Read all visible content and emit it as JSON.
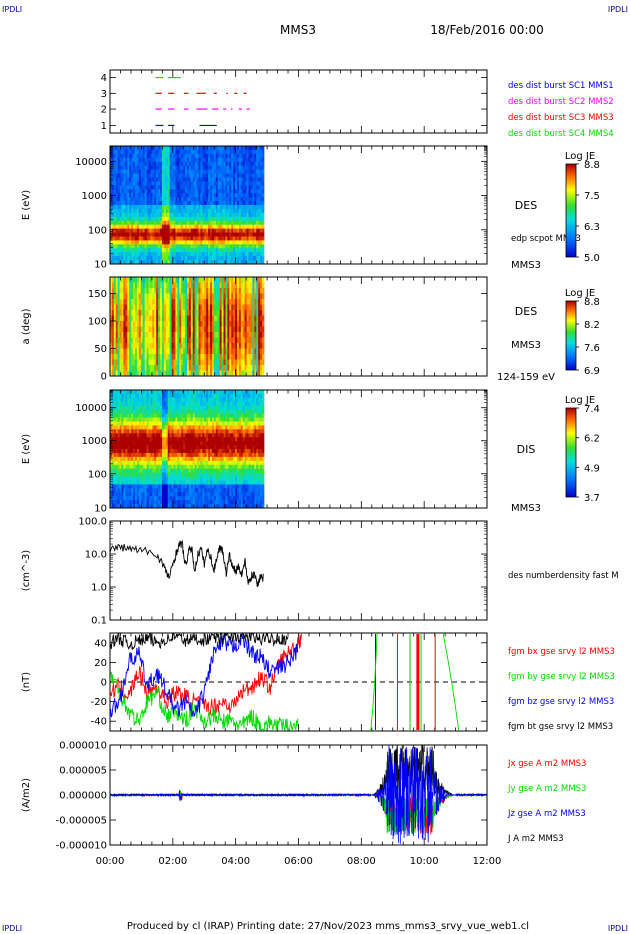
{
  "header": {
    "left_tag": "IPDLI",
    "right_tag": "IPDLI",
    "spacecraft": "MMS3",
    "date": "18/Feb/2016 00:00"
  },
  "footer": {
    "left_tag": "IPDLI",
    "right_tag": "IPDLI",
    "text": "Produced by cl (IRAP)   Printing date: 27/Nov/2023   mms_mms3_srvy_vue_web1.cl"
  },
  "x_axis": {
    "range_hours": [
      0,
      12
    ],
    "ticks": [
      "00:00",
      "02:00",
      "04:00",
      "06:00",
      "08:00",
      "10:00",
      "12:00"
    ]
  },
  "colors": {
    "black": "#000000",
    "red": "#ff0000",
    "green": "#00dd00",
    "blue": "#0000ff",
    "magenta": "#ff00ff",
    "header_blue": "#0000aa"
  },
  "panels": {
    "burst": {
      "yticks": [
        "4",
        "3",
        "2",
        "1"
      ],
      "legend": [
        {
          "label": "des dist burst SC1 MMS1",
          "color": "#0000ff"
        },
        {
          "label": "des dist burst SC2 MMS2",
          "color": "#ff00ff"
        },
        {
          "label": "des dist burst SC3 MMS3",
          "color": "#ff0000"
        },
        {
          "label": "des dist burst SC4 MMS4",
          "color": "#00dd00"
        }
      ]
    },
    "des_energy": {
      "ylabel": "E (eV)",
      "yticks": [
        "10000",
        "1000",
        "100",
        "10"
      ],
      "inst": "DES",
      "extra": "edp scpot MMS3",
      "sc": "MMS3",
      "colorbar": {
        "title": "Log JE",
        "ticks": [
          "8.8",
          "7.5",
          "6.3",
          "5.0"
        ]
      }
    },
    "des_pitch": {
      "ylabel": "a (deg)",
      "yticks": [
        "150",
        "100",
        "50",
        "0"
      ],
      "inst": "DES",
      "sc": "MMS3",
      "energy_band": "124-159 eV",
      "colorbar": {
        "title": "Log JE",
        "ticks": [
          "8.8",
          "8.2",
          "7.6",
          "6.9"
        ]
      }
    },
    "dis_energy": {
      "ylabel": "E (eV)",
      "yticks": [
        "10000",
        "1000",
        "100",
        "10"
      ],
      "inst": "DIS",
      "sc": "MMS3",
      "colorbar": {
        "title": "Log JE",
        "ticks": [
          "7.4",
          "6.2",
          "4.9",
          "3.7"
        ]
      }
    },
    "density": {
      "ylabel": "(cm^-3)",
      "yticks": [
        "100.0",
        "10.0",
        "1.0",
        "0.1"
      ],
      "legend": "des numberdensity fast M"
    },
    "bfield": {
      "ylabel": "(nT)",
      "yticks": [
        "40",
        "20",
        "0",
        "-20",
        "-40"
      ],
      "legend": [
        {
          "label": "fgm bx gse srvy l2 MMS3",
          "color": "#ff0000"
        },
        {
          "label": "fgm by gse srvy l2 MMS3",
          "color": "#00dd00"
        },
        {
          "label": "fgm bz gse srvy l2 MMS3",
          "color": "#0000ff"
        },
        {
          "label": "fgm bt gse srvy l2 MMS3",
          "color": "#000000"
        }
      ]
    },
    "current": {
      "ylabel": "(A/m2)",
      "yticks": [
        "0.000010",
        "0.000005",
        "0.000000",
        "-0.000005",
        "-0.000010"
      ],
      "legend": [
        {
          "label": "Jx gse A m2 MMS3",
          "color": "#ff0000"
        },
        {
          "label": "Jy gse A m2 MMS3",
          "color": "#00dd00"
        },
        {
          "label": "Jz gse A m2 MMS3",
          "color": "#0000ff"
        },
        {
          "label": "J A m2 MMS3",
          "color": "#000000"
        }
      ]
    }
  },
  "chart_data": [
    {
      "type": "scatter",
      "panel": "burst",
      "note": "burst intervals per spacecraft (hours)",
      "series": [
        {
          "name": "des dist burst SC1 MMS1",
          "level": 1,
          "segments": [
            [
              1.45,
              1.7
            ],
            [
              1.85,
              2.05
            ],
            [
              2.85,
              3.4
            ]
          ]
        },
        {
          "name": "des dist burst SC2 MMS2",
          "level": 2,
          "segments": [
            [
              1.45,
              1.65
            ],
            [
              1.85,
              2.05
            ],
            [
              2.35,
              2.5
            ],
            [
              2.75,
              3.1
            ],
            [
              3.25,
              3.45
            ],
            [
              3.6,
              3.7
            ],
            [
              3.85,
              3.9
            ],
            [
              4.1,
              4.2
            ],
            [
              4.35,
              4.45
            ]
          ]
        },
        {
          "name": "des dist burst SC3 MMS3",
          "level": 3,
          "segments": [
            [
              1.45,
              1.65
            ],
            [
              1.85,
              2.05
            ],
            [
              2.35,
              2.5
            ],
            [
              2.75,
              3.05
            ],
            [
              3.3,
              3.4
            ],
            [
              3.7,
              3.75
            ],
            [
              3.95,
              4.05
            ],
            [
              4.25,
              4.35
            ]
          ]
        },
        {
          "name": "des dist burst SC4 MMS4",
          "level": 4,
          "segments": [
            [
              1.45,
              1.7
            ],
            [
              1.85,
              2.25
            ]
          ]
        }
      ]
    },
    {
      "type": "heatmap",
      "panel": "des_energy",
      "x_range": [
        0,
        4.9
      ],
      "y_log_range_eV": [
        10,
        30000
      ],
      "z_range": [
        5.0,
        8.8
      ],
      "peak_band_eV": [
        50,
        300
      ]
    },
    {
      "type": "heatmap",
      "panel": "des_pitch",
      "x_range": [
        0,
        4.9
      ],
      "y_range_deg": [
        0,
        180
      ],
      "z_range": [
        6.9,
        8.8
      ]
    },
    {
      "type": "heatmap",
      "panel": "dis_energy",
      "x_range": [
        0,
        4.9
      ],
      "y_log_range_eV": [
        10,
        30000
      ],
      "z_range": [
        3.7,
        7.4
      ],
      "peak_band_eV": [
        300,
        5000
      ]
    },
    {
      "type": "line",
      "panel": "density",
      "ylim": [
        0.1,
        100
      ],
      "log_y": true,
      "x": [
        0.0,
        0.3,
        0.6,
        0.9,
        1.2,
        1.5,
        1.7,
        1.8,
        1.9,
        2.0,
        2.1,
        2.2,
        2.3,
        2.4,
        2.5,
        2.6,
        2.7,
        2.8,
        2.9,
        3.0,
        3.1,
        3.2,
        3.3,
        3.4,
        3.5,
        3.6,
        3.7,
        3.8,
        3.9,
        4.0,
        4.1,
        4.2,
        4.3,
        4.4,
        4.5,
        4.6,
        4.7,
        4.8,
        4.9
      ],
      "y": [
        14,
        16,
        15,
        13,
        12,
        9,
        5,
        2.5,
        2.0,
        5,
        10,
        19,
        20,
        4,
        12,
        15,
        3,
        10,
        14,
        5,
        13,
        9,
        3,
        8,
        17,
        11,
        2.6,
        9,
        4,
        3,
        4,
        2.5,
        6,
        1.4,
        2.0,
        2.5,
        1.2,
        2.2,
        1.7
      ]
    },
    {
      "type": "line",
      "panel": "bfield",
      "ylim": [
        -50,
        50
      ],
      "zero_line": "dashed",
      "series": [
        {
          "name": "fgm bx gse srvy l2 MMS3",
          "x": [
            0,
            0.3,
            0.6,
            0.9,
            1.2,
            1.5,
            1.8,
            2.1,
            2.4,
            2.7,
            3.0,
            3.3,
            3.6,
            3.9,
            4.2,
            4.5,
            4.8,
            5.1,
            5.4,
            5.7,
            6.0,
            6.1
          ],
          "y": [
            -10,
            -5,
            -15,
            10,
            -10,
            -5,
            -20,
            -10,
            -15,
            -20,
            -25,
            -25,
            -20,
            -25,
            -10,
            -5,
            5,
            -5,
            20,
            30,
            40,
            47
          ]
        },
        {
          "name": "fgm by gse srvy l2 MMS3",
          "x": [
            0,
            0.3,
            0.6,
            0.9,
            1.2,
            1.5,
            1.8,
            2.1,
            2.4,
            2.7,
            3.0,
            3.3,
            3.6,
            3.9,
            4.2,
            4.5,
            4.8,
            5.1,
            5.4,
            5.7,
            6.0
          ],
          "y": [
            10,
            -10,
            -30,
            -40,
            -20,
            -10,
            -35,
            -30,
            -40,
            -25,
            -40,
            -35,
            -40,
            -40,
            -45,
            -35,
            -45,
            -42,
            -45,
            -45,
            -45
          ]
        },
        {
          "name": "fgm bz gse srvy l2 MMS3",
          "x": [
            0,
            0.3,
            0.6,
            0.9,
            1.2,
            1.5,
            1.8,
            2.1,
            2.4,
            2.7,
            3.0,
            3.3,
            3.6,
            3.9,
            4.2,
            4.5,
            4.8,
            5.1,
            5.4,
            5.7,
            6.0
          ],
          "y": [
            -30,
            -20,
            20,
            30,
            -5,
            10,
            -10,
            -30,
            -20,
            -35,
            -10,
            30,
            40,
            35,
            45,
            30,
            25,
            10,
            15,
            20,
            35
          ]
        },
        {
          "name": "fgm bt gse srvy l2 MMS3",
          "x": [
            0,
            0.3,
            0.6,
            0.9,
            1.2,
            1.5,
            1.8,
            2.1,
            2.4,
            2.7,
            3.0,
            3.3,
            3.6,
            3.9,
            4.2,
            4.5,
            4.8,
            5.1,
            5.4,
            5.7
          ],
          "y": [
            40,
            45,
            38,
            42,
            45,
            40,
            44,
            48,
            42,
            45,
            43,
            47,
            45,
            48,
            47,
            46,
            44,
            45,
            44,
            45
          ]
        }
      ],
      "late_spikes_hours": [
        8.45,
        9.15,
        9.55,
        9.9,
        10.35
      ]
    },
    {
      "type": "line",
      "panel": "current",
      "ylim": [
        -1e-05,
        1e-05
      ],
      "activity_window_hours": [
        8.3,
        11.0
      ],
      "peak_window_hours": [
        8.8,
        10.3
      ],
      "peak_amplitude": 1e-05
    }
  ]
}
